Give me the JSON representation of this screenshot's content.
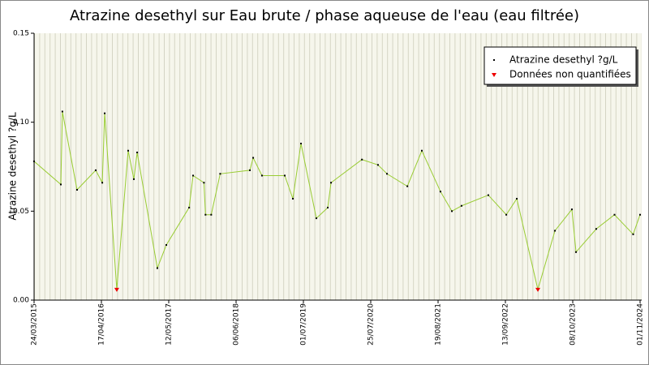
{
  "chart_data": {
    "type": "line",
    "title": "Atrazine desethyl sur Eau brute / phase aqueuse de l'eau (eau filtrée)",
    "y_label": "Atrazine desethyl ?g/L",
    "x": [
      "24/03/2015",
      "26/08/2015",
      "04/09/2015",
      "28/11/2015",
      "15/03/2016",
      "22/04/2016",
      "06/05/2016",
      "15/07/2016",
      "19/09/2016",
      "22/10/2016",
      "10/11/2016",
      "07/03/2017",
      "28/04/2017",
      "07/09/2017",
      "30/09/2017",
      "02/12/2017",
      "11/12/2017",
      "13/01/2018",
      "06/03/2018",
      "25/08/2018",
      "13/09/2018",
      "03/11/2018",
      "15/03/2019",
      "01/05/2019",
      "17/06/2019",
      "14/09/2019",
      "19/11/2019",
      "08/12/2019",
      "04/06/2020",
      "05/09/2020",
      "27/10/2020",
      "22/02/2021",
      "17/05/2021",
      "02/09/2021",
      "07/11/2021",
      "02/01/2022",
      "06/06/2022",
      "18/09/2022",
      "18/11/2022",
      "20/03/2023",
      "27/06/2023",
      "03/10/2023",
      "27/10/2023",
      "21/02/2024",
      "06/06/2024",
      "22/09/2024",
      "01/11/2024"
    ],
    "series": [
      {
        "name": "Atrazine desethyl ?g/L",
        "color": "#99cc33",
        "marker_color": "#000000",
        "values": [
          0.078,
          0.065,
          0.106,
          0.062,
          0.073,
          0.066,
          0.105,
          0.006,
          0.084,
          0.068,
          0.083,
          0.018,
          0.031,
          0.052,
          0.07,
          0.066,
          0.048,
          0.048,
          0.071,
          0.073,
          0.08,
          0.07,
          0.07,
          0.057,
          0.088,
          0.046,
          0.052,
          0.066,
          0.079,
          0.076,
          0.071,
          0.064,
          0.084,
          0.061,
          0.05,
          0.053,
          0.059,
          0.048,
          0.057,
          0.006,
          0.039,
          0.051,
          0.027,
          0.04,
          0.048,
          0.037,
          0.048
        ]
      },
      {
        "name": "Données non quantifiées",
        "color": "#ee0000",
        "x": [
          "15/07/2016",
          "20/03/2023"
        ],
        "values": [
          0.006,
          0.006
        ]
      }
    ],
    "xlim": [
      "24/03/2015",
      "01/11/2024"
    ],
    "xticks": [
      "24/03/2015",
      "17/04/2016",
      "12/05/2017",
      "06/06/2018",
      "01/07/2019",
      "25/07/2020",
      "19/08/2021",
      "13/09/2022",
      "08/10/2023",
      "01/11/2024"
    ],
    "ylim": [
      0,
      0.15
    ],
    "yticks": [
      {
        "value": 0,
        "label": "0.00"
      },
      {
        "value": 0.05,
        "label": "0.05"
      },
      {
        "value": 0.1,
        "label": "0.10"
      },
      {
        "value": 0.15,
        "label": "0.15"
      }
    ],
    "legend": "top-right"
  }
}
